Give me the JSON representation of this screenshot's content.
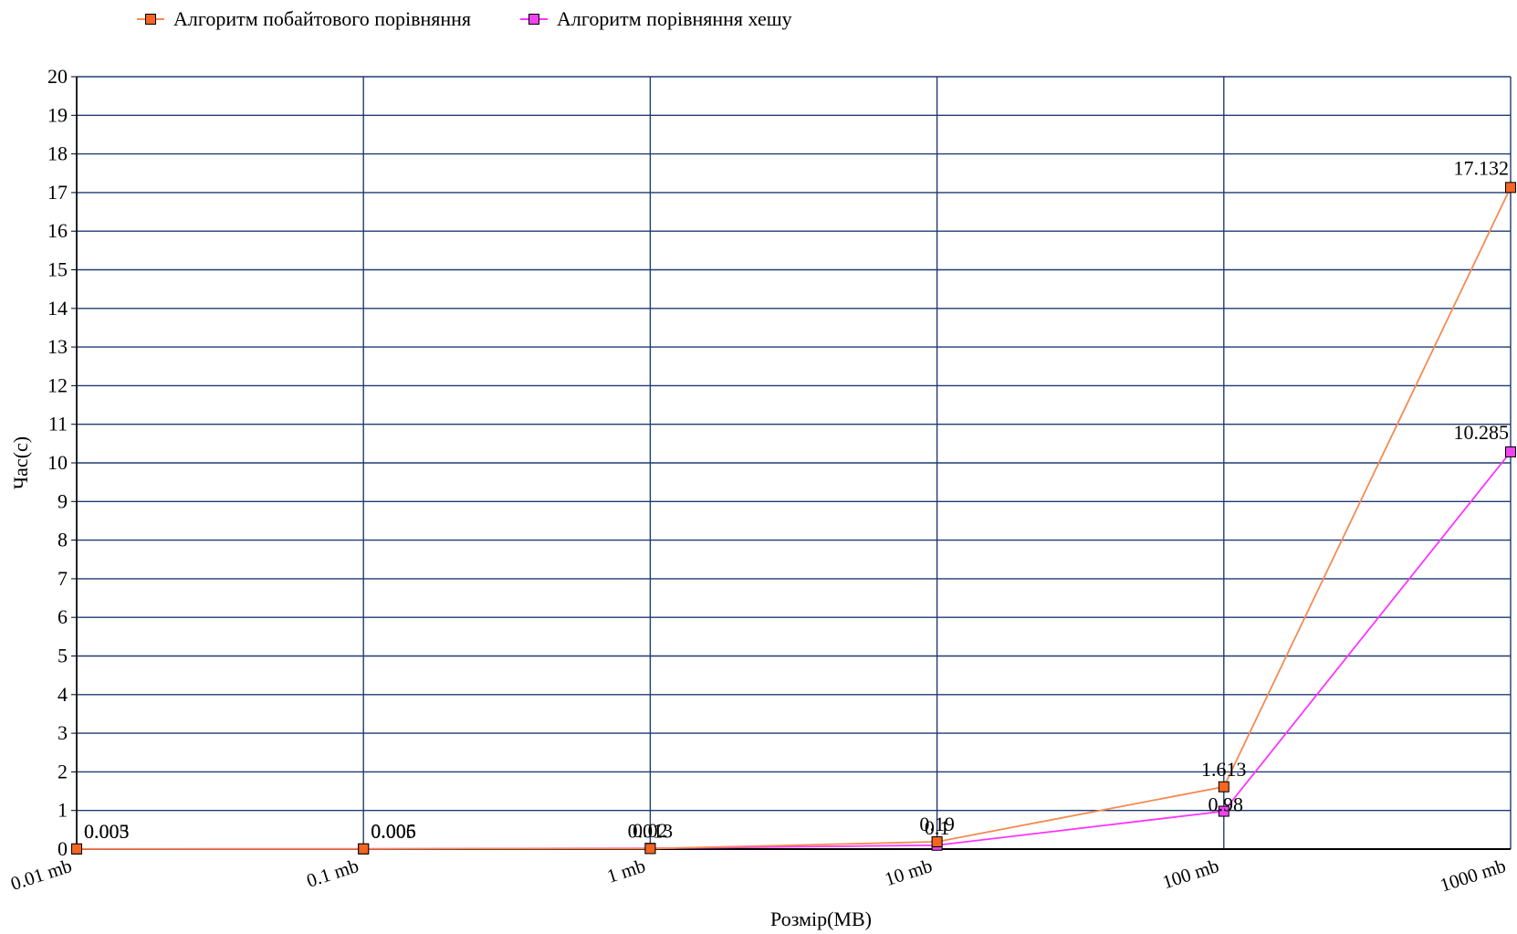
{
  "chart_data": {
    "type": "line",
    "title": "",
    "xlabel": "Розмір(MB)",
    "ylabel": "Час(с)",
    "categories": [
      "0.01 mb",
      "0.1 mb",
      "1 mb",
      "10 mb",
      "100 mb",
      "1000 mb"
    ],
    "ylim": [
      0,
      20
    ],
    "yticks": [
      "0",
      "1",
      "2",
      "3",
      "4",
      "5",
      "6",
      "7",
      "8",
      "9",
      "10",
      "11",
      "12",
      "13",
      "14",
      "15",
      "16",
      "17",
      "18",
      "19",
      "20"
    ],
    "grid": true,
    "legend_position": "top-left",
    "series": [
      {
        "name": "Алгоритм побайтового порівняння",
        "color": "#f58a52",
        "marker_color": "#f26522",
        "values": [
          0.005,
          0.006,
          0.013,
          0.19,
          1.613,
          17.132
        ],
        "labels": [
          "0.005",
          "0.006",
          "0.013",
          "0.19",
          "1.613",
          "17.132"
        ]
      },
      {
        "name": "Алгоритм порівняння хешу",
        "color": "#ff33ff",
        "marker_color": "#ee44ee",
        "values": [
          0.003,
          0.005,
          0.02,
          0.1,
          0.98,
          10.285
        ],
        "labels": [
          "0.003",
          "0.005",
          "0.02",
          "0.1",
          "0.98",
          "10.285"
        ]
      }
    ]
  }
}
